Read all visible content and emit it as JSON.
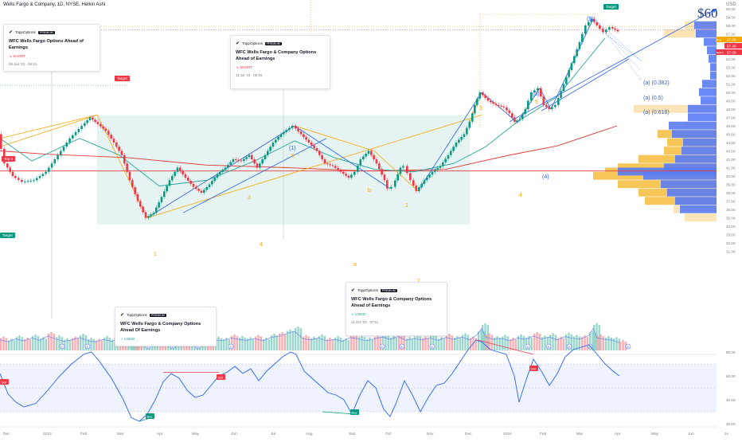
{
  "header": {
    "symbol_line": "Wells Fargo & Company, 1D, NYSE, Heikin Ashi",
    "currency": "USD"
  },
  "chart_data": {
    "type": "line",
    "price_axis": {
      "ticks": [
        60.0,
        59.0,
        58.0,
        57.0,
        56.0,
        55.0,
        54.0,
        53.0,
        52.0,
        51.0,
        50.0,
        49.0,
        48.0,
        47.0,
        46.0,
        45.0,
        44.0,
        43.0,
        42.0,
        41.0,
        40.0,
        39.0,
        38.0,
        37.0,
        36.0,
        35.0,
        34.0,
        33.0,
        32.0,
        31.0
      ]
    },
    "price_ticks_display": [
      "60.00",
      "59.00",
      "58.00",
      "57.00",
      "56.00",
      "55.00",
      "54.00",
      "53.00",
      "52.00",
      "51.00",
      "50.00",
      "49.00",
      "48.00",
      "47.00",
      "46.00",
      "45.00",
      "44.00",
      "43.00",
      "42.00",
      "41.00",
      "40.00",
      "39.00",
      "38.00",
      "37.00",
      "36.00",
      "35.00",
      "34.00",
      "33.00",
      "32.00",
      "31.00"
    ],
    "price_labels": [
      {
        "text": "57.88",
        "color": "#f7a600"
      },
      {
        "text": "57.49",
        "color": "#f23645"
      },
      {
        "text": "57.08",
        "color": "#f23645",
        "prefix": "WFC"
      }
    ],
    "price_label_prefix": "Pre",
    "rsi_axis": {
      "ticks": [
        80,
        60,
        40,
        20
      ]
    },
    "rsi_ticks_display": [
      "80.00",
      "60.00",
      "40.00",
      "20.00"
    ],
    "time_axis": [
      "Dec",
      "2023",
      "Feb",
      "Mar",
      "Apr",
      "May",
      "Jun",
      "Jul",
      "Aug",
      "Sep",
      "Oct",
      "Nov",
      "Dec",
      "2024",
      "Feb",
      "Mar",
      "Apr",
      "May",
      "Jun",
      "Ju"
    ],
    "price_series": [
      [
        0,
        45.0
      ],
      [
        8,
        41.5
      ],
      [
        18,
        40.0
      ],
      [
        30,
        39.3
      ],
      [
        45,
        39.5
      ],
      [
        60,
        40.5
      ],
      [
        75,
        42.5
      ],
      [
        90,
        44.5
      ],
      [
        105,
        46.0
      ],
      [
        115,
        47.0
      ],
      [
        125,
        46.2
      ],
      [
        135,
        45.4
      ],
      [
        145,
        44.0
      ],
      [
        155,
        42.5
      ],
      [
        165,
        39.5
      ],
      [
        175,
        37.0
      ],
      [
        185,
        35.0
      ],
      [
        195,
        35.6
      ],
      [
        205,
        37.5
      ],
      [
        215,
        39.5
      ],
      [
        225,
        41.0
      ],
      [
        235,
        39.8
      ],
      [
        245,
        38.7
      ],
      [
        255,
        38.0
      ],
      [
        265,
        39.0
      ],
      [
        275,
        40.2
      ],
      [
        285,
        41.0
      ],
      [
        295,
        42.0
      ],
      [
        305,
        41.8
      ],
      [
        315,
        42.5
      ],
      [
        325,
        41.0
      ],
      [
        335,
        42.5
      ],
      [
        345,
        44.0
      ],
      [
        355,
        45.0
      ],
      [
        362,
        45.5
      ],
      [
        370,
        46.0
      ],
      [
        380,
        45.0
      ],
      [
        390,
        44.0
      ],
      [
        400,
        43.0
      ],
      [
        410,
        41.5
      ],
      [
        420,
        41.2
      ],
      [
        430,
        40.5
      ],
      [
        440,
        39.8
      ],
      [
        448,
        40.5
      ],
      [
        455,
        42.0
      ],
      [
        465,
        43.0
      ],
      [
        475,
        41.5
      ],
      [
        485,
        39.5
      ],
      [
        490,
        38.5
      ],
      [
        495,
        38.7
      ],
      [
        505,
        41.0
      ],
      [
        510,
        41.2
      ],
      [
        518,
        39.5
      ],
      [
        525,
        38.2
      ],
      [
        535,
        39.5
      ],
      [
        545,
        40.5
      ],
      [
        555,
        41.2
      ],
      [
        565,
        42.5
      ],
      [
        575,
        44.0
      ],
      [
        585,
        45.0
      ],
      [
        592,
        46.5
      ],
      [
        598,
        48.5
      ],
      [
        605,
        50.0
      ],
      [
        615,
        49.0
      ],
      [
        625,
        48.5
      ],
      [
        635,
        48.2
      ],
      [
        642,
        47.5
      ],
      [
        648,
        46.5
      ],
      [
        655,
        46.8
      ],
      [
        662,
        48.0
      ],
      [
        670,
        50.0
      ],
      [
        678,
        50.5
      ],
      [
        685,
        48.5
      ],
      [
        692,
        48.0
      ],
      [
        700,
        48.5
      ],
      [
        710,
        51.0
      ],
      [
        720,
        53.5
      ],
      [
        730,
        56.0
      ],
      [
        738,
        58.0
      ],
      [
        745,
        58.8
      ],
      [
        752,
        58.0
      ],
      [
        760,
        57.2
      ],
      [
        768,
        57.8
      ],
      [
        778,
        57.3
      ]
    ],
    "volume_bars": [
      [
        0,
        2.2
      ],
      [
        10,
        1.8
      ],
      [
        20,
        2.4
      ],
      [
        30,
        2.0
      ],
      [
        40,
        2.6
      ],
      [
        50,
        2.1
      ],
      [
        60,
        3.0
      ],
      [
        70,
        2.4
      ],
      [
        80,
        1.9
      ],
      [
        90,
        2.2
      ],
      [
        100,
        2.7
      ],
      [
        110,
        2.0
      ],
      [
        120,
        1.8
      ],
      [
        130,
        2.3
      ],
      [
        140,
        1.9
      ],
      [
        150,
        2.5
      ],
      [
        160,
        3.2
      ],
      [
        165,
        5.0
      ],
      [
        170,
        3.1
      ],
      [
        180,
        2.6
      ],
      [
        190,
        2.2
      ],
      [
        200,
        2.8
      ],
      [
        210,
        2.3
      ],
      [
        220,
        2.0
      ],
      [
        230,
        2.4
      ],
      [
        240,
        2.9
      ],
      [
        250,
        5.5
      ],
      [
        260,
        2.5
      ],
      [
        270,
        2.2
      ],
      [
        280,
        2.0
      ],
      [
        290,
        2.6
      ],
      [
        300,
        2.3
      ],
      [
        310,
        2.1
      ],
      [
        320,
        2.5
      ],
      [
        330,
        2.0
      ],
      [
        340,
        2.7
      ],
      [
        350,
        3.0
      ],
      [
        360,
        3.5
      ],
      [
        370,
        4.0
      ],
      [
        380,
        2.5
      ],
      [
        390,
        2.2
      ],
      [
        400,
        2.6
      ],
      [
        410,
        2.0
      ],
      [
        420,
        2.3
      ],
      [
        430,
        1.9
      ],
      [
        440,
        2.7
      ],
      [
        450,
        2.4
      ],
      [
        460,
        2.0
      ],
      [
        470,
        2.4
      ],
      [
        480,
        2.8
      ],
      [
        490,
        2.3
      ],
      [
        500,
        2.9
      ],
      [
        510,
        2.1
      ],
      [
        520,
        2.5
      ],
      [
        530,
        2.2
      ],
      [
        540,
        2.6
      ],
      [
        550,
        2.1
      ],
      [
        560,
        2.7
      ],
      [
        570,
        2.3
      ],
      [
        580,
        2.8
      ],
      [
        590,
        2.2
      ],
      [
        600,
        3.4
      ],
      [
        605,
        4.6
      ],
      [
        610,
        2.8
      ],
      [
        620,
        2.3
      ],
      [
        630,
        2.5
      ],
      [
        640,
        2.0
      ],
      [
        650,
        2.6
      ],
      [
        660,
        2.3
      ],
      [
        670,
        3.0
      ],
      [
        680,
        2.4
      ],
      [
        690,
        2.8
      ],
      [
        700,
        2.2
      ],
      [
        710,
        2.9
      ],
      [
        720,
        2.5
      ],
      [
        730,
        2.4
      ],
      [
        740,
        3.2
      ],
      [
        745,
        4.6
      ],
      [
        750,
        2.6
      ],
      [
        760,
        2.3
      ],
      [
        770,
        2.1
      ],
      [
        778,
        1.6
      ]
    ],
    "rsi_series": [
      [
        0,
        62
      ],
      [
        10,
        45
      ],
      [
        20,
        38
      ],
      [
        30,
        34
      ],
      [
        45,
        37
      ],
      [
        60,
        48
      ],
      [
        75,
        60
      ],
      [
        90,
        70
      ],
      [
        105,
        78
      ],
      [
        115,
        80
      ],
      [
        125,
        72
      ],
      [
        140,
        58
      ],
      [
        155,
        40
      ],
      [
        165,
        25
      ],
      [
        175,
        22
      ],
      [
        185,
        28
      ],
      [
        195,
        40
      ],
      [
        205,
        55
      ],
      [
        215,
        62
      ],
      [
        225,
        58
      ],
      [
        235,
        48
      ],
      [
        245,
        42
      ],
      [
        255,
        44
      ],
      [
        265,
        52
      ],
      [
        275,
        60
      ],
      [
        285,
        63
      ],
      [
        295,
        68
      ],
      [
        305,
        62
      ],
      [
        315,
        66
      ],
      [
        325,
        56
      ],
      [
        335,
        64
      ],
      [
        345,
        70
      ],
      [
        355,
        76
      ],
      [
        365,
        80
      ],
      [
        372,
        78
      ],
      [
        382,
        64
      ],
      [
        392,
        58
      ],
      [
        402,
        52
      ],
      [
        412,
        46
      ],
      [
        422,
        44
      ],
      [
        432,
        40
      ],
      [
        442,
        28
      ],
      [
        452,
        44
      ],
      [
        462,
        56
      ],
      [
        472,
        50
      ],
      [
        482,
        32
      ],
      [
        490,
        26
      ],
      [
        498,
        38
      ],
      [
        508,
        56
      ],
      [
        518,
        44
      ],
      [
        528,
        30
      ],
      [
        538,
        42
      ],
      [
        548,
        52
      ],
      [
        558,
        54
      ],
      [
        568,
        62
      ],
      [
        578,
        72
      ],
      [
        588,
        82
      ],
      [
        598,
        90
      ],
      [
        606,
        88
      ],
      [
        616,
        82
      ],
      [
        626,
        80
      ],
      [
        636,
        78
      ],
      [
        646,
        60
      ],
      [
        652,
        38
      ],
      [
        660,
        55
      ],
      [
        670,
        74
      ],
      [
        680,
        64
      ],
      [
        690,
        52
      ],
      [
        700,
        62
      ],
      [
        710,
        76
      ],
      [
        720,
        82
      ],
      [
        730,
        84
      ],
      [
        740,
        86
      ],
      [
        750,
        78
      ],
      [
        760,
        70
      ],
      [
        770,
        64
      ],
      [
        778,
        60
      ]
    ]
  },
  "annotations": {
    "sixty": "$60",
    "fib": [
      "(a) (0.382)",
      "(a) (0.5)",
      "(a) (0.618)"
    ],
    "waves": [
      {
        "t": "(1)",
        "c": "#2962ff"
      },
      {
        "t": "5",
        "c": "#f7a600"
      },
      {
        "t": "3",
        "c": "#f7a600"
      },
      {
        "t": "1",
        "c": "#f7a600"
      },
      {
        "t": "4",
        "c": "#f7a600"
      },
      {
        "t": "b",
        "c": "#f7a600"
      },
      {
        "t": "a",
        "c": "#f7a600"
      },
      {
        "t": "1",
        "c": "#f7a600"
      },
      {
        "t": "2",
        "c": "#f7a600"
      },
      {
        "t": "3",
        "c": "#f7a600"
      },
      {
        "t": "(3)",
        "c": "#2962ff"
      },
      {
        "t": "5",
        "c": "#f7a600"
      },
      {
        "t": "(4)",
        "c": "#2962ff"
      },
      {
        "t": "4",
        "c": "#f7a600"
      },
      {
        "t": "(5)",
        "c": "#2962ff"
      }
    ],
    "signals": [
      {
        "t": "Sell",
        "c": "#f23645"
      },
      {
        "t": "Buy",
        "c": "#089981"
      },
      {
        "t": "Sell",
        "c": "#f23645"
      },
      {
        "t": "Buy",
        "c": "#089981"
      },
      {
        "t": "Sell",
        "c": "#f23645"
      }
    ],
    "tags": {
      "target": "Target",
      "top": "Top 3"
    },
    "event_marker": "E"
  },
  "cards": [
    {
      "brand": "ToppOptions",
      "badge": "PREMIUM",
      "title": "WFC Wells Fargo Options Ahead of Earnings",
      "signal": "↘ SHORT",
      "date": "08 Jan '23 · 08:12"
    },
    {
      "brand": "ToppOptions",
      "badge": "PREMIUM",
      "title": "WFC Wells Fargo & Company Options Ahead of Earnings",
      "signal": "↘ SHORT",
      "date": "11 Jul '23 · 05:16"
    },
    {
      "brand": "ToppOptions",
      "badge": "PREMIUM",
      "title": "WFC Wells Fargo & Company Options Ahead of Earnings",
      "signal": "✓ LONG",
      "date": "11 Oct '23 · 07:51"
    },
    {
      "brand": "ToppOptions",
      "badge": "PREMIUM",
      "title": "WFC Wells Fargo & Company Options Ahead Of Earnings",
      "signal": "✓ LONG",
      "date": ""
    }
  ],
  "colors": {
    "up": "#089981",
    "down": "#f23645",
    "blue": "#2962ff",
    "orange": "#f7a600",
    "rsi": "#2962ff",
    "ma_red": "#e53935",
    "ma_green": "#26a69a"
  }
}
